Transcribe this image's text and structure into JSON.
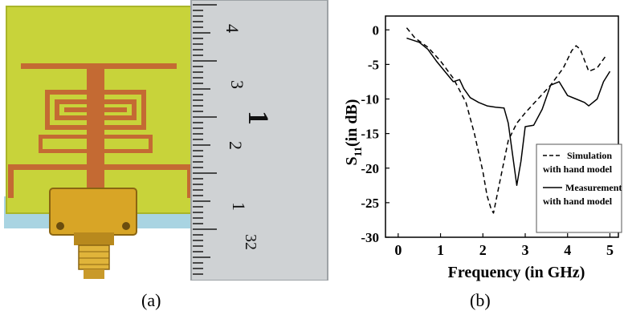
{
  "captions": {
    "left": "(a)",
    "right": "(b)"
  },
  "ruler": {
    "marks": [
      "4",
      "3",
      "1",
      "2",
      "1",
      "32"
    ]
  },
  "colors": {
    "board": "#c8d33a",
    "copper": "#c46a33",
    "connector": "#d8a526",
    "ruler_metal": "#cfd2d4",
    "background": "#ffffff"
  },
  "chart_data": {
    "type": "line",
    "xlabel": "Frequency (in GHz)",
    "ylabel_main": "S",
    "ylabel_sub": "11",
    "ylabel_rest": "(in dB)",
    "xlim": [
      -0.3,
      5.2
    ],
    "ylim": [
      -30,
      2
    ],
    "x_ticks": [
      0,
      1,
      2,
      3,
      4,
      5
    ],
    "y_ticks": [
      0,
      -5,
      -10,
      -15,
      -20,
      -25,
      -30
    ],
    "legend_position": "bottom-right",
    "series": [
      {
        "name_line1": "Simulation",
        "name_line2": "with hand model",
        "style": "dashed",
        "x": [
          0.2,
          0.4,
          0.7,
          1.0,
          1.3,
          1.6,
          1.8,
          2.0,
          2.1,
          2.2,
          2.25,
          2.35,
          2.5,
          2.6,
          2.8,
          3.0,
          3.3,
          3.6,
          3.9,
          4.1,
          4.2,
          4.3,
          4.5,
          4.7,
          4.9
        ],
        "y": [
          0.3,
          -1.2,
          -2.5,
          -4.5,
          -7.0,
          -10.5,
          -15.0,
          -20.5,
          -24.0,
          -26.0,
          -26.5,
          -23.5,
          -19.0,
          -16.0,
          -13.5,
          -12.0,
          -10.0,
          -8.0,
          -5.5,
          -3.0,
          -2.3,
          -2.8,
          -6.0,
          -5.5,
          -3.8
        ]
      },
      {
        "name_line1": "Measurement",
        "name_line2": "with hand model",
        "style": "solid",
        "x": [
          0.2,
          0.5,
          0.7,
          0.9,
          1.1,
          1.3,
          1.45,
          1.55,
          1.7,
          1.9,
          2.1,
          2.3,
          2.5,
          2.6,
          2.7,
          2.8,
          2.9,
          3.0,
          3.2,
          3.4,
          3.6,
          3.8,
          4.0,
          4.2,
          4.4,
          4.5,
          4.7,
          4.85,
          5.0
        ],
        "y": [
          -1.2,
          -1.8,
          -2.8,
          -4.5,
          -6.0,
          -7.5,
          -7.2,
          -8.5,
          -9.8,
          -10.5,
          -11.0,
          -11.2,
          -11.3,
          -13.5,
          -18.0,
          -22.5,
          -19.0,
          -14.0,
          -13.8,
          -11.5,
          -8.0,
          -7.5,
          -9.5,
          -10.0,
          -10.5,
          -11.0,
          -10.0,
          -7.5,
          -6.0
        ]
      }
    ]
  }
}
